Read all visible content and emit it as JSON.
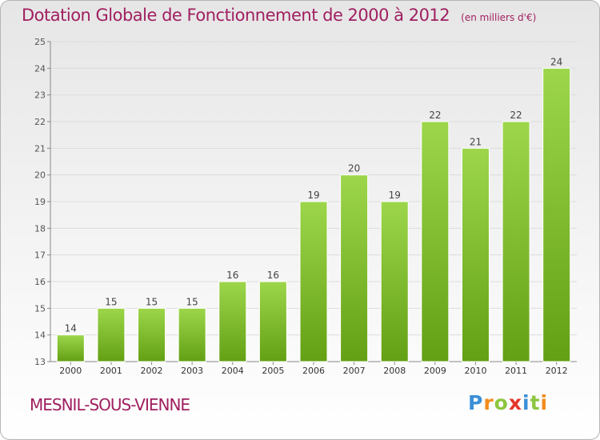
{
  "header": {
    "title": "Dotation Globale de Fonctionnement de 2000 à 2012",
    "subtitle": "(en milliers d'€)"
  },
  "footer": {
    "commune": "MESNIL-SOUS-VIENNE",
    "logo_letters": [
      "P",
      "r",
      "o",
      "x",
      "i",
      "t",
      "i"
    ]
  },
  "colors": {
    "title": "#a02060",
    "bar_top": "#9dd64b",
    "bar_bottom": "#63a014",
    "logo": [
      "#3c8fd6",
      "#f28c1e",
      "#8cc63f",
      "#e3352c",
      "#3c8fd6",
      "#8cc63f",
      "#f28c1e"
    ]
  },
  "chart_data": {
    "type": "bar",
    "title": "Dotation Globale de Fonctionnement de 2000 à 2012",
    "subtitle": "(en milliers d'€)",
    "categories": [
      "2000",
      "2001",
      "2002",
      "2003",
      "2004",
      "2005",
      "2006",
      "2007",
      "2008",
      "2009",
      "2010",
      "2011",
      "2012"
    ],
    "values": [
      14,
      15,
      15,
      15,
      16,
      16,
      19,
      20,
      19,
      22,
      21,
      22,
      24
    ],
    "ylim": [
      13,
      25
    ],
    "yticks": [
      13,
      14,
      15,
      16,
      17,
      18,
      19,
      20,
      21,
      22,
      23,
      24,
      25
    ],
    "grid": true,
    "legend": "none"
  }
}
